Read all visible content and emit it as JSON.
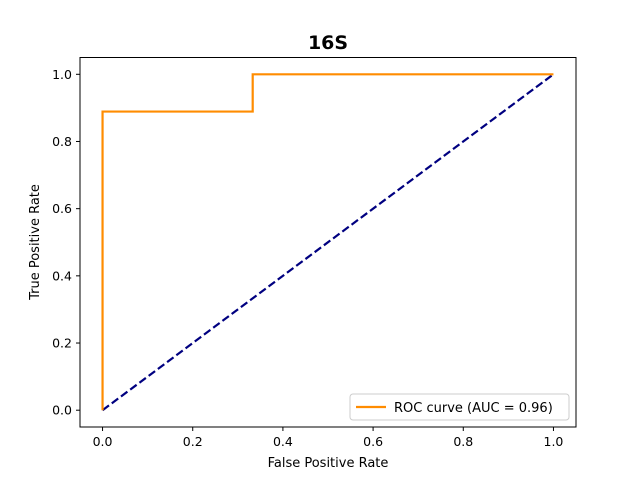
{
  "chart_data": {
    "type": "line",
    "title": "16S",
    "xlabel": "False Positive Rate",
    "ylabel": "True Positive Rate",
    "xlim": [
      -0.05,
      1.05
    ],
    "ylim": [
      -0.05,
      1.05
    ],
    "xticks": [
      "0.0",
      "0.2",
      "0.4",
      "0.6",
      "0.8",
      "1.0"
    ],
    "yticks": [
      "0.0",
      "0.2",
      "0.4",
      "0.6",
      "0.8",
      "1.0"
    ],
    "grid": false,
    "legend_position": "lower-right",
    "series": [
      {
        "name": "ROC curve (AUC = 0.96)",
        "color": "#ff8c00",
        "linestyle": "solid",
        "x": [
          0.0,
          0.0,
          0.333,
          0.333,
          1.0
        ],
        "y": [
          0.0,
          0.889,
          0.889,
          1.0,
          1.0
        ]
      },
      {
        "color": "#000080",
        "linestyle": "dashed",
        "x": [
          0.0,
          1.0
        ],
        "y": [
          0.0,
          1.0
        ]
      }
    ]
  }
}
